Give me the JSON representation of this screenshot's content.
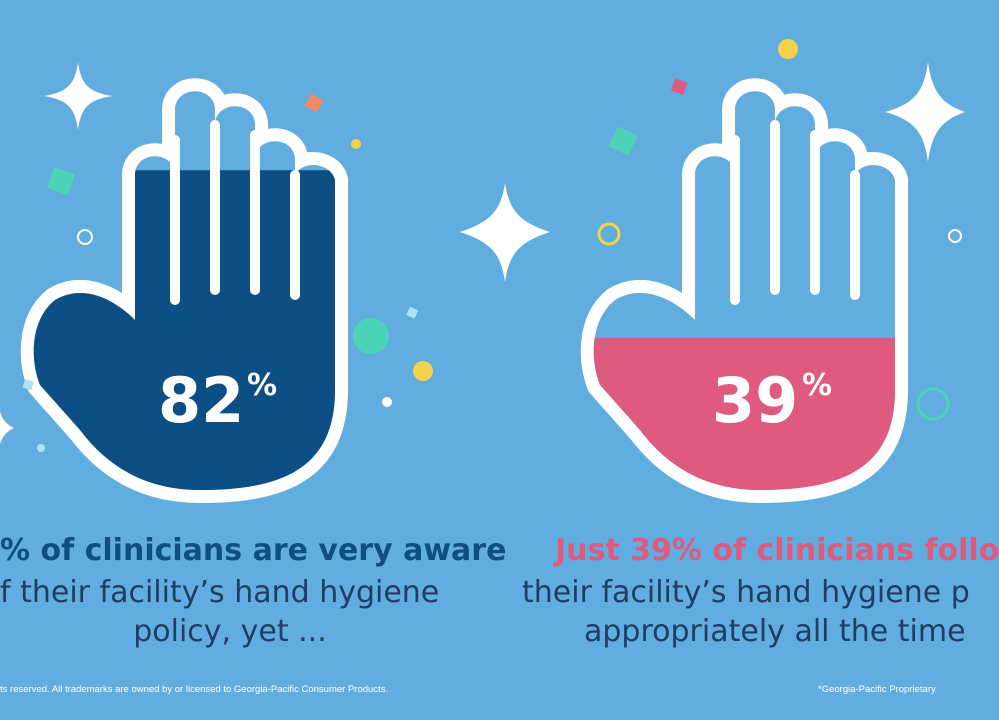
{
  "colors": {
    "background": "#62ade0",
    "left_fill": "#0d4f85",
    "right_fill": "#df5a7f",
    "left_headline": "#0d4f85",
    "right_headline": "#df5a7f",
    "body_text": "#1e3e66"
  },
  "left": {
    "percent_value": "82",
    "percent_sign": "%",
    "fill_level": 0.82,
    "headline": "% of clinicians are very aware",
    "line2": "f their facility’s hand hygiene",
    "line3": "policy, yet ..."
  },
  "right": {
    "percent_value": "39",
    "percent_sign": "%",
    "fill_level": 0.39,
    "headline": "Just 39% of clinicians follo",
    "line2": "their facility’s hand hygiene p",
    "line3": "appropriately all the time"
  },
  "footer": {
    "left": "ts reserved. All trademarks are owned by or licensed to Georgia-Pacific Consumer Products.",
    "right": "*Georgia-Pacific Proprietary"
  },
  "icons": {
    "sparkle": "sparkle-icon",
    "hand": "hand-icon"
  }
}
